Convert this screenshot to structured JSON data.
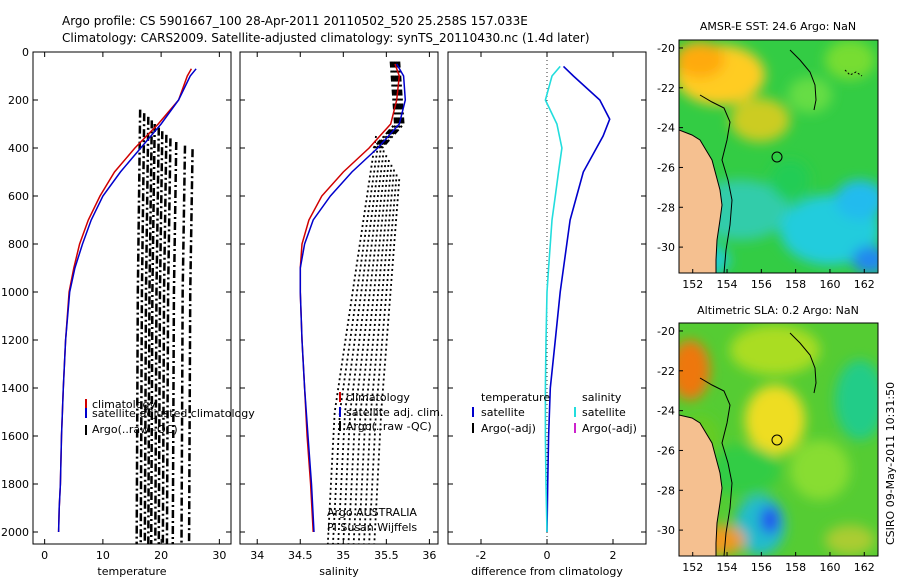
{
  "header": {
    "line1": "Argo profile: CS 5901667_100 28-Apr-2011 20110502_520 25.258S 157.033E",
    "line2": "Climatology: CARS2009. Satellite-adjusted climatology: synTS_20110430.nc (1.4d later)"
  },
  "colors": {
    "climatology": "#d00000",
    "satellite": "#0000cc",
    "argo": "#000000",
    "sal_satellite": "#22dddd",
    "sal_argo": "#cc22cc"
  },
  "chart_data": [
    {
      "type": "line",
      "id": "temperature",
      "xlabel": "temperature",
      "xlim": [
        -2,
        32
      ],
      "xticks": [
        0,
        10,
        20,
        30
      ],
      "ylim": [
        2050,
        0
      ],
      "yticks": [
        0,
        200,
        400,
        600,
        800,
        1000,
        1200,
        1400,
        1600,
        1800,
        2000
      ],
      "legend": [
        "climatology",
        "satellite-adjusted climatology",
        "Argo(..raw -QC)"
      ],
      "series": [
        {
          "name": "climatology",
          "x": [
            25.2,
            24.5,
            23.0,
            19.5,
            15.5,
            12.0,
            9.5,
            7.5,
            6.0,
            5.0,
            4.2,
            3.6,
            3.2,
            2.9,
            2.7,
            2.5,
            2.4
          ],
          "y": [
            70,
            100,
            200,
            300,
            400,
            500,
            600,
            700,
            800,
            900,
            1000,
            1200,
            1400,
            1600,
            1800,
            1900,
            2000
          ]
        },
        {
          "name": "satellite",
          "x": [
            26.0,
            25.0,
            23.0,
            20.0,
            16.5,
            13.0,
            10.0,
            8.0,
            6.5,
            5.2,
            4.3,
            3.6,
            3.2,
            2.9,
            2.7,
            2.5,
            2.4
          ],
          "y": [
            70,
            100,
            200,
            300,
            400,
            500,
            600,
            700,
            800,
            900,
            1000,
            1200,
            1400,
            1600,
            1800,
            1900,
            2000
          ]
        }
      ]
    },
    {
      "type": "line",
      "id": "salinity",
      "xlabel": "salinity",
      "xlim": [
        33.8,
        36.1
      ],
      "xticks": [
        34,
        34.5,
        35,
        35.5,
        36
      ],
      "ylim": [
        2050,
        0
      ],
      "legend": [
        "climatology",
        "satellite adj. clim.",
        "Argo(..raw -QC)"
      ],
      "annotation": [
        "Argo AUSTRALIA",
        "PI Susan Wijffels"
      ],
      "series": [
        {
          "name": "climatology",
          "x": [
            35.6,
            35.65,
            35.62,
            35.55,
            35.3,
            35.0,
            34.75,
            34.6,
            34.52,
            34.5,
            34.5,
            34.52,
            34.55,
            34.58,
            34.62,
            34.65
          ],
          "y": [
            50,
            100,
            200,
            300,
            400,
            500,
            600,
            700,
            800,
            900,
            1000,
            1200,
            1400,
            1600,
            1800,
            2000
          ]
        },
        {
          "name": "satellite",
          "x": [
            35.62,
            35.7,
            35.72,
            35.65,
            35.4,
            35.1,
            34.85,
            34.65,
            34.55,
            34.5,
            34.5,
            34.52,
            34.55,
            34.59,
            34.63,
            34.66
          ],
          "y": [
            50,
            100,
            200,
            300,
            400,
            500,
            600,
            700,
            800,
            900,
            1000,
            1200,
            1400,
            1600,
            1800,
            2000
          ]
        }
      ]
    },
    {
      "type": "line",
      "id": "difference",
      "xlabel": "difference from climatology",
      "xlim": [
        -3,
        3
      ],
      "xticks": [
        -2,
        0,
        2
      ],
      "ylim": [
        2050,
        0
      ],
      "legend_temperature": [
        "temperature",
        "satellite",
        "Argo(-adj)"
      ],
      "legend_salinity": [
        "salinity",
        "satellite",
        "Argo(-adj)"
      ],
      "series": [
        {
          "name": "temperature satellite",
          "x": [
            0.5,
            0.8,
            1.6,
            1.9,
            1.7,
            1.1,
            0.9,
            0.7,
            0.6,
            0.5,
            0.4,
            0.25,
            0.1,
            0.05,
            0.02,
            0.0
          ],
          "y": [
            60,
            100,
            200,
            280,
            350,
            500,
            600,
            700,
            800,
            900,
            1000,
            1200,
            1400,
            1600,
            1800,
            2000
          ]
        },
        {
          "name": "salinity satellite",
          "x": [
            0.4,
            0.15,
            -0.05,
            0.3,
            0.45,
            0.35,
            0.25,
            0.15,
            0.1,
            0.05,
            0.0,
            -0.03,
            -0.05,
            -0.05,
            -0.03,
            0.0
          ],
          "y": [
            60,
            100,
            200,
            300,
            400,
            500,
            600,
            700,
            800,
            900,
            1000,
            1200,
            1400,
            1600,
            1800,
            2000
          ]
        }
      ]
    },
    {
      "type": "heatmap",
      "id": "sst_map",
      "title": "AMSR-E SST: 24.6 Argo: NaN",
      "xticks": [
        152,
        154,
        156,
        158,
        160,
        162
      ],
      "yticks": [
        -20,
        -22,
        -24,
        -26,
        -28,
        -30
      ],
      "profile_location": [
        157.033,
        -25.258
      ]
    },
    {
      "type": "heatmap",
      "id": "sla_map",
      "title": "Altimetric SLA: 0.2 Argo: NaN",
      "xticks": [
        152,
        154,
        156,
        158,
        160,
        162
      ],
      "yticks": [
        -20,
        -22,
        -24,
        -26,
        -28,
        -30
      ],
      "profile_location": [
        157.033,
        -25.258
      ]
    }
  ],
  "footer": {
    "credit": "CSIRO 09-May-2011 10:31:50"
  }
}
